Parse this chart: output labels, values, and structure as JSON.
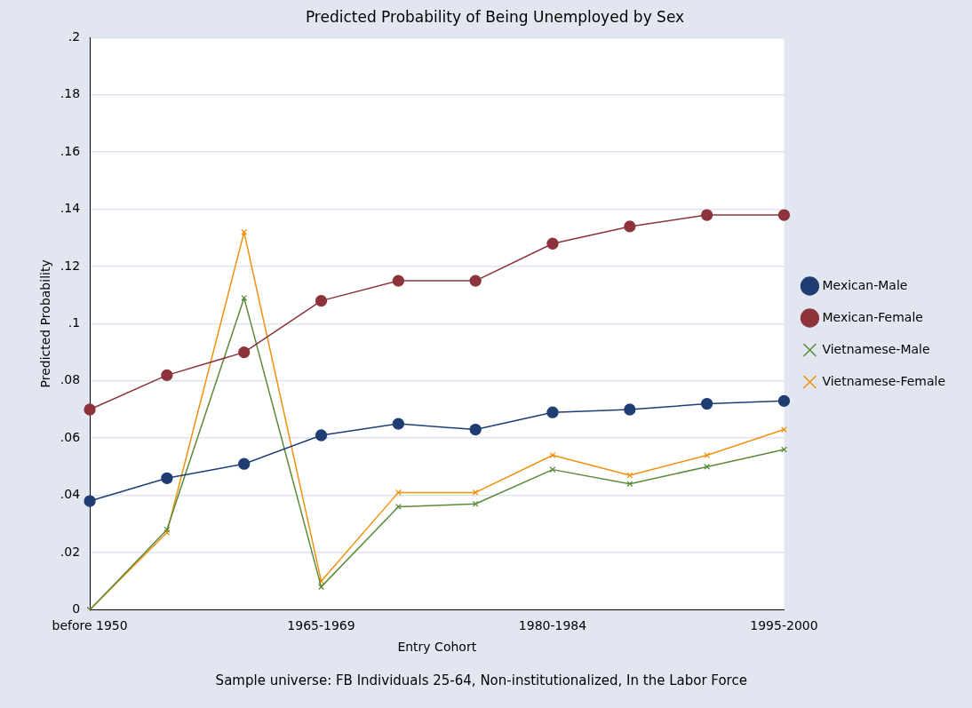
{
  "chart_data": {
    "type": "line",
    "title": "Predicted Probability of Being Unemployed by Sex",
    "xlabel": "Entry Cohort",
    "ylabel": "Predicted Probability",
    "annotations": [
      "Sample universe: FB Individuals 25-64, Non-institutionalized, In the Labor Force"
    ],
    "categories": [
      "before 1950",
      null,
      null,
      "1965-1969",
      null,
      null,
      "1980-1984",
      null,
      null,
      "1995-2000"
    ],
    "series": [
      {
        "name": "Mexican-Male",
        "color": "#1f3d73",
        "marker": "circle",
        "values": [
          0.038,
          0.046,
          0.051,
          0.061,
          0.065,
          0.063,
          0.069,
          0.07,
          0.072,
          0.073
        ]
      },
      {
        "name": "Mexican-Female",
        "color": "#8c333b",
        "marker": "circle",
        "values": [
          0.07,
          0.082,
          0.09,
          0.108,
          0.115,
          0.115,
          0.128,
          0.134,
          0.138,
          0.138
        ]
      },
      {
        "name": "Vietnamese-Male",
        "color": "#5a8a3a",
        "marker": "cross",
        "values": [
          0,
          0.028,
          0.109,
          0.008,
          0.036,
          0.037,
          0.049,
          0.044,
          0.05,
          0.056
        ]
      },
      {
        "name": "Vietnamese-Female",
        "color": "#f0900f",
        "marker": "cross",
        "values": [
          0,
          0.027,
          0.132,
          0.01,
          0.041,
          0.041,
          0.054,
          0.047,
          0.054,
          0.063
        ]
      }
    ],
    "ylim": [
      0,
      0.2
    ],
    "yticks": [
      {
        "value": 0,
        "label": "0"
      },
      {
        "value": 0.02,
        "label": ".02"
      },
      {
        "value": 0.04,
        "label": ".04"
      },
      {
        "value": 0.06,
        "label": ".06"
      },
      {
        "value": 0.08,
        "label": ".08"
      },
      {
        "value": 0.1,
        "label": ".1"
      },
      {
        "value": 0.12,
        "label": ".12"
      },
      {
        "value": 0.14,
        "label": ".14"
      },
      {
        "value": 0.16,
        "label": ".16"
      },
      {
        "value": 0.18,
        "label": ".18"
      },
      {
        "value": 0.2,
        "label": ".2"
      }
    ],
    "grid": "y",
    "legend": "right"
  }
}
